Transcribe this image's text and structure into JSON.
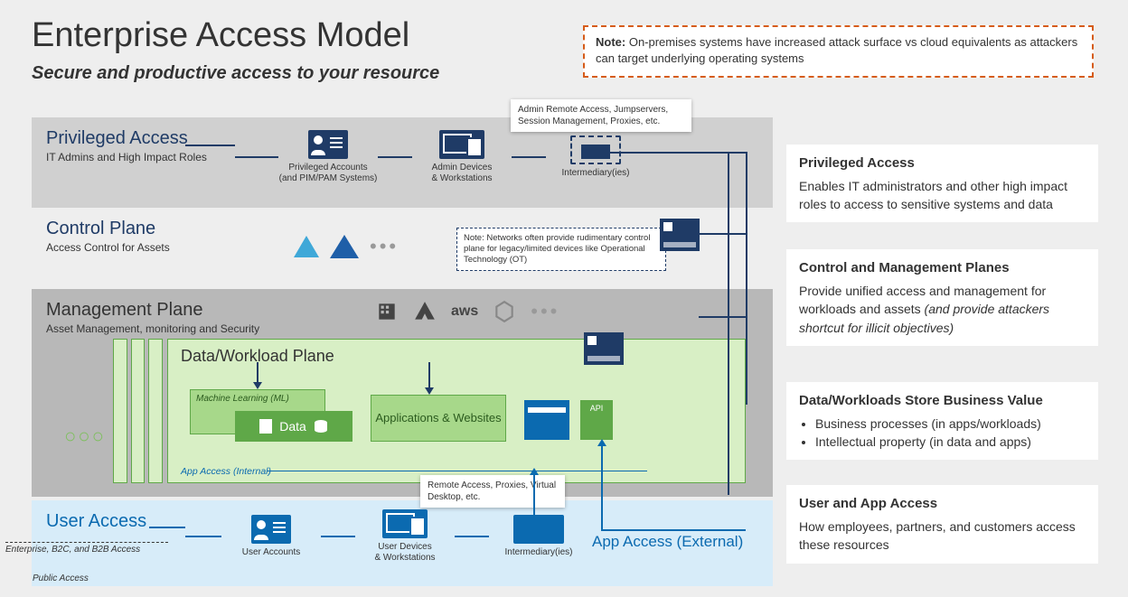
{
  "header": {
    "title": "Enterprise Access Model",
    "subtitle": "Secure and productive access to your resource",
    "note_label": "Note:",
    "note_text": " On-premises systems have increased attack surface vs cloud equivalents as attackers can target underlying operating systems"
  },
  "planes": {
    "privileged": {
      "title": "Privileged Access",
      "sub": "IT Admins and High Impact Roles",
      "flow": {
        "accounts": "Privileged Accounts\n(and PIM/PAM Systems)",
        "devices": "Admin Devices\n& Workstations",
        "intermediary": "Intermediary(ies)"
      },
      "callout": "Admin Remote Access, Jumpservers, Session Management, Proxies, etc."
    },
    "control": {
      "title": "Control Plane",
      "sub": "Access Control for Assets",
      "note": "Note: Networks often provide rudimentary control plane for legacy/limited devices like Operational Technology (OT)"
    },
    "management": {
      "title": "Management Plane",
      "sub": "Asset Management, monitoring and Security",
      "cloud_providers": [
        "Azure",
        "AWS",
        "GCP"
      ]
    },
    "data_workload": {
      "title": "Data/Workload Plane",
      "ml": "Machine Learning (ML)",
      "data": "Data",
      "apps": "Applications & Websites",
      "api": "API",
      "internal_access": "App Access (Internal)"
    },
    "user": {
      "title": "User Access",
      "flow": {
        "accounts": "User Accounts",
        "devices": "User Devices\n& Workstations",
        "intermediary": "Intermediary(ies)"
      },
      "callout": "Remote Access, Proxies, Virtual Desktop, etc.",
      "app_external": "App Access (External)",
      "enterprise_label": "Enterprise, B2C, and B2B Access",
      "public_label": "Public Access"
    }
  },
  "sidebar": {
    "privileged": {
      "h": "Privileged Access",
      "p": "Enables IT administrators and other high impact roles to access to sensitive systems and data"
    },
    "control_mgmt": {
      "h": "Control and Management Planes",
      "p": "Provide unified access and management for workloads and assets ",
      "ital": "(and provide attackers shortcut for illicit objectives)"
    },
    "data": {
      "h": "Data/Workloads Store Business Value",
      "b1": "Business processes (in apps/workloads)",
      "b2": "Intellectual property (in data and apps)"
    },
    "user": {
      "h": "User and App Access",
      "p": "How employees, partners, and customers access these resources"
    }
  },
  "colors": {
    "navy": "#1f3b66",
    "blue": "#0b6ab0",
    "green": "#5fa848",
    "lightgreen": "#d8efc5",
    "orange": "#d65c1a",
    "grey": "#b8b8b8"
  }
}
